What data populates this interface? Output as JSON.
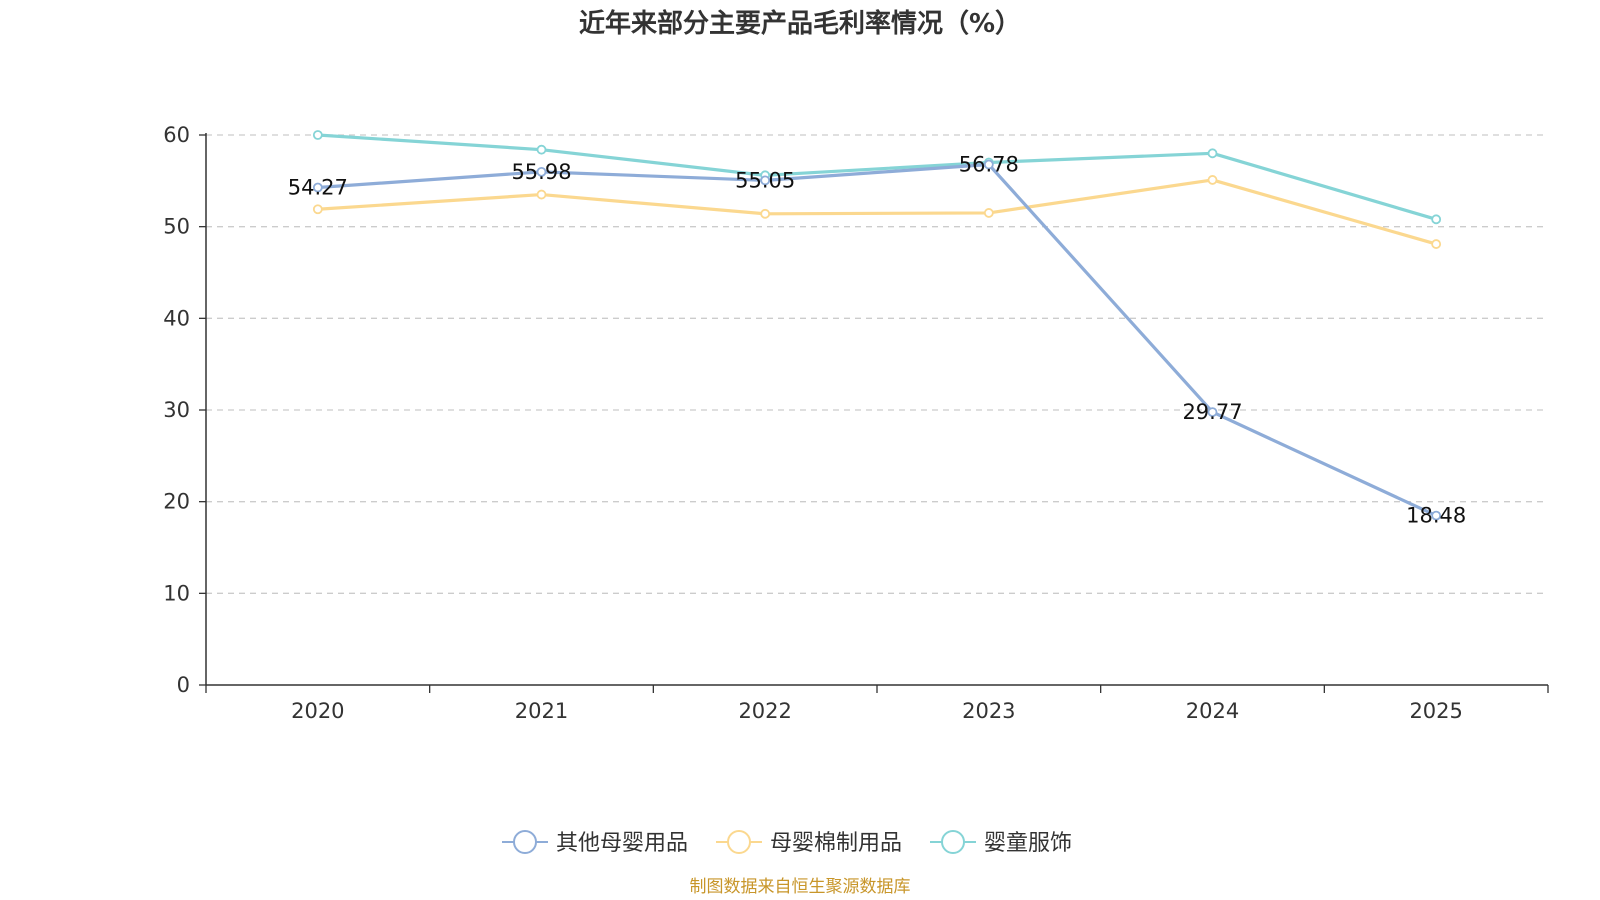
{
  "chart_data": {
    "type": "line",
    "title": "近年来部分主要产品毛利率情况（%）",
    "categories": [
      "2020",
      "2021",
      "2022",
      "2023",
      "2024",
      "2025"
    ],
    "ylim": [
      0,
      60
    ],
    "yticks": [
      "0",
      "10",
      "20",
      "30",
      "40",
      "50",
      "60"
    ],
    "grid": true,
    "legend_position": "bottom",
    "series": [
      {
        "name": "其他母婴用品",
        "color": "#8eacd8",
        "values": [
          54.27,
          55.98,
          55.05,
          56.78,
          29.77,
          18.48
        ],
        "labels": [
          "54.27",
          "55.98",
          "55.05",
          "56.78",
          "29.77",
          "18.48"
        ]
      },
      {
        "name": "母婴棉制用品",
        "color": "#fbd88f",
        "values": [
          51.9,
          53.5,
          51.4,
          51.5,
          55.1,
          48.1
        ]
      },
      {
        "name": "婴童服饰",
        "color": "#85d4d6",
        "values": [
          60.0,
          58.4,
          55.6,
          57.0,
          58.0,
          50.8
        ]
      }
    ],
    "source": "制图数据来自恒生聚源数据库"
  }
}
